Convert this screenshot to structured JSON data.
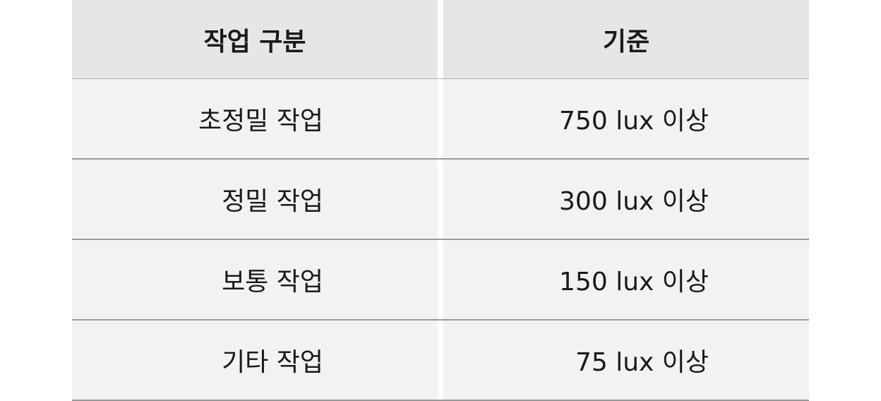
{
  "table": {
    "headers": [
      "작업 구분",
      "기준"
    ],
    "rows": [
      {
        "task": "초정밀 작업",
        "standard": "750 lux 이상"
      },
      {
        "task": "정밀 작업",
        "standard": "300 lux 이상"
      },
      {
        "task": "보통 작업",
        "standard": "150 lux 이상"
      },
      {
        "task": "기타 작업",
        "standard": "75 lux 이상"
      }
    ]
  }
}
